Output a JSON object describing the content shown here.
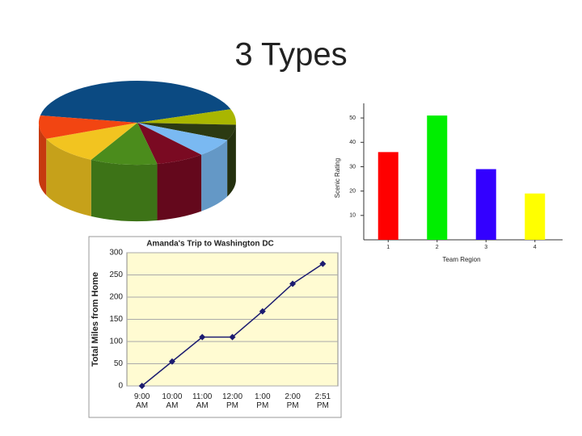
{
  "title": "3 Types",
  "chart_data": [
    {
      "type": "pie",
      "values": [
        42,
        6,
        6,
        7,
        8,
        11,
        11,
        9
      ],
      "colors": [
        "#0b4a82",
        "#a9b600",
        "#2c3a12",
        "#7ab9f2",
        "#7a0a22",
        "#4b8c1c",
        "#f2c420",
        "#f24512"
      ]
    },
    {
      "type": "bar",
      "categories": [
        "1",
        "2",
        "3",
        "4"
      ],
      "values": [
        36,
        51,
        29,
        19
      ],
      "colors": [
        "#ff0000",
        "#00ee00",
        "#3300ff",
        "#ffff00"
      ],
      "ylabel": "Scenic Rating",
      "xlabel": "Team Region",
      "ylim": [
        0,
        56
      ],
      "yticks": [
        10,
        20,
        30,
        40,
        50
      ]
    },
    {
      "type": "line",
      "title": "Amanda's Trip to Washington DC",
      "ylabel": "Total Miles from Home",
      "categories": [
        "9:00 AM",
        "10:00 AM",
        "11:00 AM",
        "12:00 PM",
        "1:00 PM",
        "2:00 PM",
        "2:51 PM"
      ],
      "values": [
        0,
        55,
        110,
        110,
        168,
        230,
        275
      ],
      "color": "#1c1c70",
      "ylim": [
        0,
        300
      ],
      "yticks": [
        0,
        50,
        100,
        150,
        200,
        250,
        300
      ],
      "grid": true
    }
  ]
}
